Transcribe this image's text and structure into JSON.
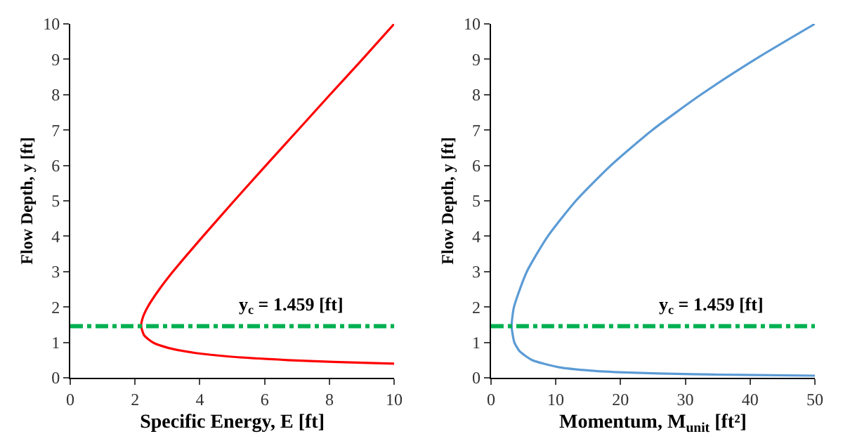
{
  "chart_data": [
    {
      "type": "line",
      "xlabel": "Specific Energy, E [ft]",
      "ylabel": "Flow Depth, y [ft]",
      "series": [
        {
          "color": "#ff0000",
          "x": [
            10,
            9.22,
            8.12,
            6.71,
            4.91,
            3.87,
            3.23,
            2.82,
            2.55,
            2.28,
            2.19,
            2.24,
            2.39,
            2.75,
            3.17,
            4.1,
            5.06,
            6.04,
            7.03,
            8.02,
            9.02,
            10
          ],
          "values": [
            0.4,
            0.42,
            0.45,
            0.5,
            0.6,
            0.7,
            0.8,
            0.9,
            1.0,
            1.2,
            1.46,
            1.7,
            2.0,
            2.5,
            3.0,
            4.0,
            5.0,
            6.0,
            7.0,
            8.0,
            9.0,
            10
          ]
        }
      ],
      "xlim": [
        0,
        10
      ],
      "xticks": [
        0,
        2,
        4,
        6,
        8,
        10
      ],
      "ylim": [
        0,
        10
      ],
      "yticks": [
        0,
        1,
        2,
        3,
        4,
        5,
        6,
        7,
        8,
        9,
        10
      ],
      "ref_lines": [
        {
          "axis": "y",
          "value": 1.459,
          "label": "y$_{c}$ = 1.459 [ft]",
          "color": "#00b050",
          "line_style": "dashdot"
        }
      ],
      "marker": "none",
      "line_style": "solid"
    },
    {
      "type": "line",
      "xlabel": "Momentum, M$_{unit}$ [ft²]",
      "ylabel": "Flow Depth, y [ft]",
      "series": [
        {
          "color": "#5b9bd5",
          "x": [
            50,
            38.8,
            31.06,
            20.7,
            15.5,
            10.4,
            6.34,
            4.42,
            3.61,
            3.19,
            3.55,
            5.54,
            8.78,
            13.1,
            18.5,
            24.9,
            32.4,
            40.8,
            50
          ],
          "values": [
            0.06,
            0.08,
            0.1,
            0.15,
            0.2,
            0.3,
            0.5,
            0.75,
            1.0,
            1.46,
            2.0,
            3.0,
            4.0,
            5.0,
            6.0,
            7.0,
            8.0,
            9.0,
            10
          ]
        }
      ],
      "xlim": [
        0,
        50
      ],
      "xticks": [
        0,
        10,
        20,
        30,
        40,
        50
      ],
      "ylim": [
        0,
        10
      ],
      "yticks": [
        0,
        1,
        2,
        3,
        4,
        5,
        6,
        7,
        8,
        9,
        10
      ],
      "ref_lines": [
        {
          "axis": "y",
          "value": 1.459,
          "label": "y$_{c}$ = 1.459 [ft]",
          "color": "#00b050",
          "line_style": "dashdot"
        }
      ],
      "marker": "none",
      "line_style": "solid"
    }
  ]
}
